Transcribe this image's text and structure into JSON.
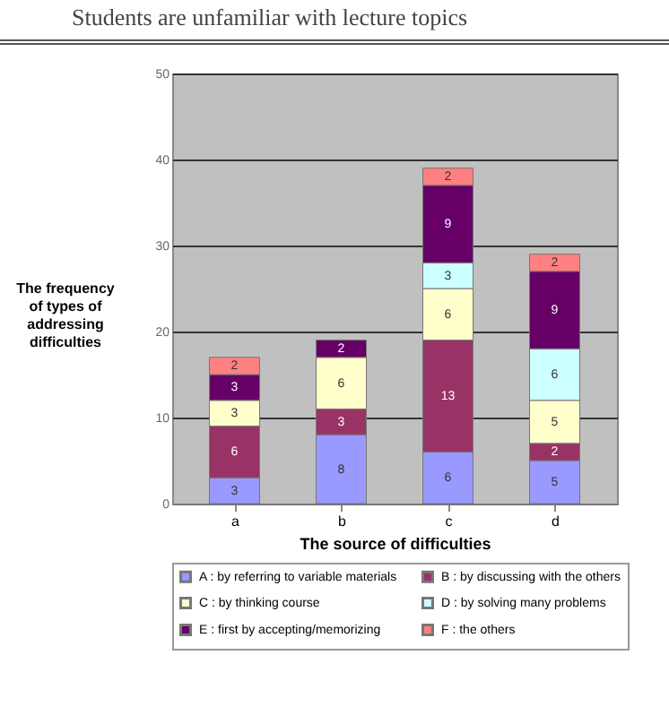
{
  "chart_data": {
    "type": "bar",
    "stacked": true,
    "annotations": [
      "Students are unfamiliar with lecture topics"
    ],
    "xlabel": "The source of difficulties",
    "ylabel": "The frequency of types of addressing difficulties",
    "categories": [
      "a",
      "b",
      "c",
      "d"
    ],
    "series": [
      {
        "name": "A : by referring to variable materials",
        "color": "#9999ff",
        "values": [
          3,
          8,
          6,
          5
        ]
      },
      {
        "name": "B : by discussing with the others",
        "color": "#993366",
        "values": [
          6,
          3,
          13,
          2
        ]
      },
      {
        "name": "C : by thinking course",
        "color": "#ffffcc",
        "values": [
          3,
          6,
          6,
          5
        ]
      },
      {
        "name": "D : by solving many problems",
        "color": "#ccffff",
        "values": [
          null,
          null,
          3,
          6
        ]
      },
      {
        "name": "E : first by accepting/memorizing",
        "color": "#660066",
        "values": [
          3,
          2,
          9,
          9
        ]
      },
      {
        "name": "F : the others",
        "color": "#ff8080",
        "values": [
          2,
          null,
          2,
          2
        ]
      }
    ],
    "ylim": [
      0,
      50
    ],
    "yticks": [
      0,
      10,
      20,
      30,
      40,
      50
    ],
    "grid": "y",
    "legend": "bottom",
    "data_labels": true
  }
}
